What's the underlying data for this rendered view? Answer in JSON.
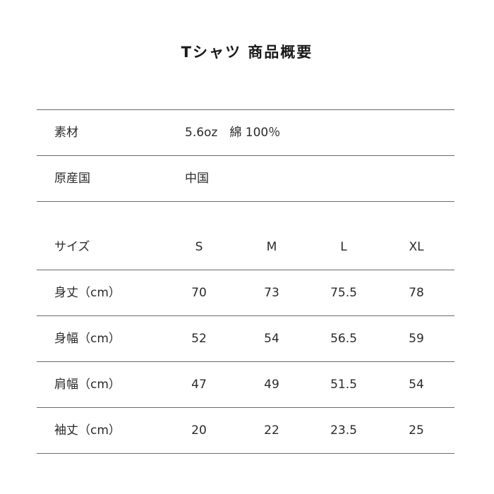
{
  "title": "Tシャツ 商品概要",
  "info": [
    {
      "label": "素材",
      "value": "5.6oz　綿 100％"
    },
    {
      "label": "原産国",
      "value": "中国"
    }
  ],
  "size_table": {
    "header_label": "サイズ",
    "sizes": [
      "S",
      "M",
      "L",
      "XL"
    ],
    "rows": [
      {
        "label": "身丈（cm）",
        "values": [
          "70",
          "73",
          "75.5",
          "78"
        ]
      },
      {
        "label": "身幅（cm）",
        "values": [
          "52",
          "54",
          "56.5",
          "59"
        ]
      },
      {
        "label": "肩幅（cm）",
        "values": [
          "47",
          "49",
          "51.5",
          "54"
        ]
      },
      {
        "label": "袖丈（cm）",
        "values": [
          "20",
          "22",
          "23.5",
          "25"
        ]
      }
    ]
  }
}
